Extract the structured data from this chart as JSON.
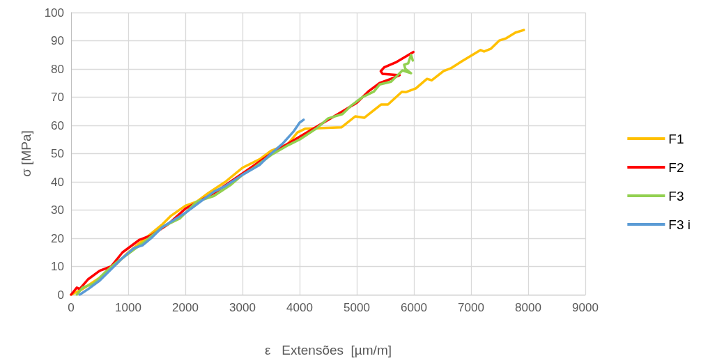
{
  "chart_data": {
    "type": "line",
    "xlabel": "ε   Extensões  [µm/m]",
    "ylabel": "σ [MPa]",
    "xlim": [
      0,
      9000
    ],
    "xticks": [
      0,
      1000,
      2000,
      3000,
      4000,
      5000,
      6000,
      7000,
      8000,
      9000
    ],
    "ylim": [
      0,
      100
    ],
    "yticks": [
      0,
      10,
      20,
      30,
      40,
      50,
      60,
      70,
      80,
      90,
      100
    ],
    "grid": true,
    "legend": "right",
    "marker": "none",
    "line_style": "solid",
    "series": [
      {
        "name": "F1",
        "color": "#ffc000",
        "x": [
          0,
          200,
          500,
          800,
          1000,
          1300,
          1600,
          1750,
          2000,
          2200,
          2400,
          2700,
          3000,
          3300,
          3500,
          3791,
          3961,
          4095,
          4730,
          4973,
          5130,
          5424,
          5546,
          5790,
          5863,
          6034,
          6229,
          6314,
          6521,
          6643,
          6838,
          7167,
          7228,
          7350,
          7496,
          7618,
          7777,
          7923
        ],
        "values": [
          0,
          2,
          6,
          11,
          15,
          20,
          25,
          28,
          31.5,
          33,
          36,
          40,
          45,
          48,
          51,
          53.3,
          57.5,
          58.8,
          59.3,
          63.2,
          62.7,
          67.4,
          67.4,
          71.9,
          71.8,
          73.1,
          76.5,
          76,
          79.3,
          80.2,
          82.7,
          86.7,
          86.2,
          87.2,
          90.1,
          90.9,
          92.9,
          93.8
        ]
      },
      {
        "name": "F2",
        "color": "#ff0000",
        "x": [
          0,
          100,
          150,
          300,
          500,
          700,
          900,
          1200,
          1400,
          1700,
          2000,
          2500,
          3000,
          3500,
          4500,
          5000,
          5200,
          5400,
          5600,
          5750,
          5450,
          5420,
          5480,
          5680,
          5850,
          5990
        ],
        "values": [
          0,
          2.5,
          2,
          5.5,
          8.5,
          10,
          15,
          19.5,
          21,
          25,
          30.5,
          36,
          43,
          50,
          62,
          68,
          72,
          75,
          76.5,
          77.8,
          78.3,
          79.2,
          80.6,
          82.3,
          84.3,
          86
        ]
      },
      {
        "name": "F3",
        "color": "#92d050",
        "x": [
          100,
          200,
          400,
          600,
          800,
          1000,
          1300,
          1600,
          1900,
          2200,
          2500,
          2800,
          3000,
          3200,
          3500,
          3800,
          4000,
          4300,
          4500,
          4750,
          4900,
          5100,
          5300,
          5400,
          5600,
          5700,
          5800,
          5950,
          5850,
          5830,
          5900,
          5950,
          5980
        ],
        "values": [
          0,
          2.5,
          4,
          8,
          11.5,
          14.5,
          19,
          24,
          27,
          33,
          35,
          39,
          42.5,
          45,
          49.5,
          53,
          55,
          59,
          62.5,
          64,
          67,
          70,
          72,
          74.5,
          75.5,
          77.5,
          79.5,
          78.5,
          80,
          81.5,
          82,
          85,
          83
        ]
      },
      {
        "name": "F3 i",
        "color": "#5b9bd5",
        "x": [
          150,
          300,
          500,
          700,
          900,
          1100,
          1250,
          1400,
          1600,
          1800,
          2000,
          2200,
          2500,
          2700,
          3000,
          3300,
          3500,
          3700,
          3900,
          4000,
          4070
        ],
        "values": [
          0,
          2,
          5,
          9,
          13,
          16.5,
          17.5,
          20,
          24,
          26.5,
          29,
          32,
          36.5,
          38.5,
          42.5,
          46,
          50,
          53.5,
          58,
          61,
          62
        ]
      }
    ]
  }
}
